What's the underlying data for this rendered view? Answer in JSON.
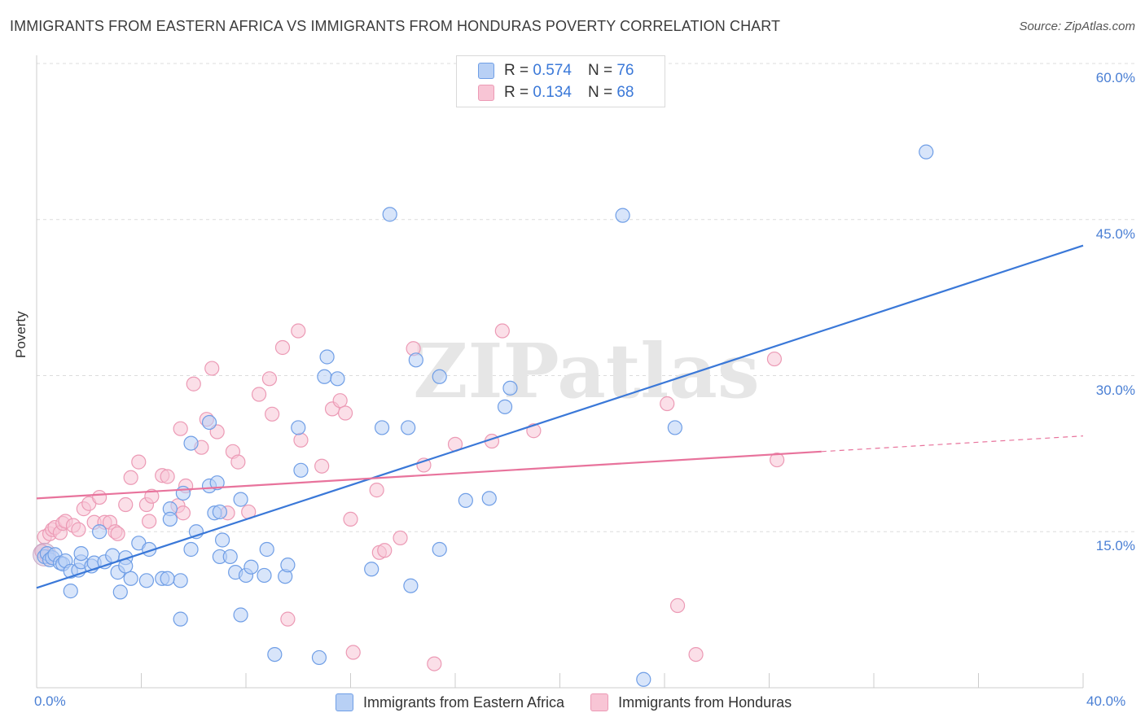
{
  "title": "IMMIGRANTS FROM EASTERN AFRICA VS IMMIGRANTS FROM HONDURAS POVERTY CORRELATION CHART",
  "source": "Source: ZipAtlas.com",
  "watermark": "ZIPatlas",
  "legend": {
    "blue": {
      "r_label": "R =",
      "r_value": "0.574",
      "n_label": "N =",
      "n_value": "76"
    },
    "pink": {
      "r_label": "R =",
      "r_value": "0.134",
      "n_label": "N =",
      "n_value": "68"
    }
  },
  "colors": {
    "blue": "#3a78d8",
    "blue_fill": "#b8d0f5",
    "pink": "#e8739c",
    "pink_fill": "#f8c5d5",
    "tick_text": "#4a7fd4"
  },
  "chart_data": {
    "type": "scatter",
    "title": "IMMIGRANTS FROM EASTERN AFRICA VS IMMIGRANTS FROM HONDURAS POVERTY CORRELATION CHART",
    "xlabel": "",
    "ylabel": "Poverty",
    "xlim": [
      0,
      40
    ],
    "ylim": [
      0,
      60
    ],
    "x_tick_labels": [
      "0.0%",
      "40.0%"
    ],
    "y_tick_labels": [
      "15.0%",
      "30.0%",
      "45.0%",
      "60.0%"
    ],
    "y_ticks": [
      15,
      30,
      45,
      60
    ],
    "grid": "horizontal dashed",
    "legend_position": "top-center",
    "series": [
      {
        "name": "Immigrants from Eastern Africa",
        "color": "#3a78d8",
        "trend": {
          "x": [
            0,
            40
          ],
          "y": [
            9.6,
            42.5
          ]
        },
        "points": [
          [
            0.3,
            12.6
          ],
          [
            0.4,
            12.9
          ],
          [
            0.5,
            12.3
          ],
          [
            0.6,
            12.5
          ],
          [
            0.7,
            12.8
          ],
          [
            0.9,
            12.0
          ],
          [
            1.0,
            11.9
          ],
          [
            1.1,
            12.2
          ],
          [
            1.3,
            11.2
          ],
          [
            1.6,
            11.3
          ],
          [
            1.7,
            12.1
          ],
          [
            2.1,
            11.7
          ],
          [
            2.2,
            12.0
          ],
          [
            2.6,
            12.1
          ],
          [
            2.9,
            12.7
          ],
          [
            3.1,
            11.1
          ],
          [
            3.4,
            12.5
          ],
          [
            3.6,
            10.5
          ],
          [
            3.9,
            13.9
          ],
          [
            4.2,
            10.3
          ],
          [
            4.3,
            13.3
          ],
          [
            4.8,
            10.5
          ],
          [
            5.5,
            10.3
          ],
          [
            5.9,
            13.3
          ],
          [
            6.1,
            15.0
          ],
          [
            6.6,
            19.4
          ],
          [
            6.8,
            16.8
          ],
          [
            6.9,
            19.7
          ],
          [
            7.0,
            12.6
          ],
          [
            7.1,
            14.2
          ],
          [
            7.4,
            12.6
          ],
          [
            7.6,
            11.1
          ],
          [
            8.0,
            10.8
          ],
          [
            8.2,
            11.6
          ],
          [
            8.7,
            10.8
          ],
          [
            8.8,
            13.3
          ],
          [
            9.5,
            10.7
          ],
          [
            9.6,
            11.8
          ],
          [
            10.0,
            25.0
          ],
          [
            11.0,
            29.9
          ],
          [
            11.5,
            29.7
          ],
          [
            1.7,
            12.9
          ],
          [
            2.4,
            15.0
          ],
          [
            3.4,
            11.7
          ],
          [
            5.0,
            10.5
          ],
          [
            5.1,
            17.2
          ],
          [
            5.1,
            16.2
          ],
          [
            5.5,
            6.6
          ],
          [
            5.6,
            18.7
          ],
          [
            5.9,
            23.5
          ],
          [
            6.6,
            25.5
          ],
          [
            7.0,
            16.9
          ],
          [
            7.8,
            18.1
          ],
          [
            7.8,
            7.0
          ],
          [
            9.1,
            3.2
          ],
          [
            10.1,
            20.9
          ],
          [
            10.8,
            2.9
          ],
          [
            11.1,
            31.8
          ],
          [
            12.8,
            11.4
          ],
          [
            13.2,
            25.0
          ],
          [
            13.5,
            45.5
          ],
          [
            14.5,
            31.5
          ],
          [
            14.2,
            25.0
          ],
          [
            14.3,
            9.8
          ],
          [
            15.4,
            13.3
          ],
          [
            15.4,
            29.9
          ],
          [
            16.4,
            18.0
          ],
          [
            17.3,
            18.2
          ],
          [
            17.9,
            27.0
          ],
          [
            18.1,
            28.8
          ],
          [
            22.4,
            45.4
          ],
          [
            23.2,
            0.8
          ],
          [
            24.4,
            25.0
          ],
          [
            34.0,
            51.5
          ],
          [
            1.3,
            9.3
          ],
          [
            3.2,
            9.2
          ]
        ]
      },
      {
        "name": "Immigrants from Honduras",
        "color": "#e8739c",
        "trend": {
          "x": [
            0,
            30
          ],
          "y": [
            18.2,
            22.7
          ]
        },
        "trend_dashed": {
          "x": [
            30,
            40
          ],
          "y": [
            22.7,
            24.2
          ]
        },
        "points": [
          [
            0.2,
            13.1
          ],
          [
            0.3,
            14.5
          ],
          [
            0.4,
            12.6
          ],
          [
            0.5,
            14.8
          ],
          [
            0.6,
            15.2
          ],
          [
            0.7,
            15.4
          ],
          [
            0.9,
            14.9
          ],
          [
            1.0,
            15.8
          ],
          [
            1.1,
            16.0
          ],
          [
            1.4,
            15.6
          ],
          [
            1.6,
            15.2
          ],
          [
            1.8,
            17.2
          ],
          [
            2.0,
            17.7
          ],
          [
            2.2,
            15.9
          ],
          [
            2.4,
            18.3
          ],
          [
            2.6,
            15.9
          ],
          [
            2.8,
            15.9
          ],
          [
            3.0,
            15.0
          ],
          [
            3.1,
            14.8
          ],
          [
            3.4,
            17.6
          ],
          [
            3.6,
            20.2
          ],
          [
            3.9,
            21.7
          ],
          [
            4.2,
            17.6
          ],
          [
            4.3,
            16.0
          ],
          [
            4.4,
            18.4
          ],
          [
            4.8,
            20.4
          ],
          [
            5.0,
            20.3
          ],
          [
            5.4,
            17.5
          ],
          [
            5.5,
            24.9
          ],
          [
            5.6,
            16.8
          ],
          [
            5.7,
            19.4
          ],
          [
            6.0,
            29.2
          ],
          [
            6.3,
            23.1
          ],
          [
            6.5,
            25.8
          ],
          [
            6.7,
            30.7
          ],
          [
            6.9,
            24.6
          ],
          [
            7.3,
            16.8
          ],
          [
            7.5,
            22.7
          ],
          [
            7.7,
            21.7
          ],
          [
            8.1,
            16.9
          ],
          [
            8.5,
            28.2
          ],
          [
            8.9,
            29.7
          ],
          [
            9.0,
            26.3
          ],
          [
            9.4,
            32.7
          ],
          [
            9.6,
            6.6
          ],
          [
            10.0,
            34.3
          ],
          [
            10.1,
            23.8
          ],
          [
            10.9,
            21.3
          ],
          [
            11.3,
            26.8
          ],
          [
            11.6,
            27.6
          ],
          [
            11.8,
            26.4
          ],
          [
            12.0,
            16.2
          ],
          [
            12.1,
            3.4
          ],
          [
            13.0,
            19.0
          ],
          [
            13.1,
            13.0
          ],
          [
            13.3,
            13.2
          ],
          [
            13.9,
            14.4
          ],
          [
            14.4,
            32.6
          ],
          [
            14.8,
            21.4
          ],
          [
            15.2,
            2.3
          ],
          [
            16.0,
            23.4
          ],
          [
            17.4,
            23.7
          ],
          [
            17.8,
            34.3
          ],
          [
            19.0,
            24.7
          ],
          [
            24.1,
            27.3
          ],
          [
            24.5,
            7.9
          ],
          [
            25.2,
            3.2
          ],
          [
            28.2,
            31.6
          ],
          [
            28.3,
            21.9
          ]
        ]
      }
    ]
  },
  "bottom_legend": {
    "blue_label": "Immigrants from Eastern Africa",
    "pink_label": "Immigrants from Honduras"
  }
}
